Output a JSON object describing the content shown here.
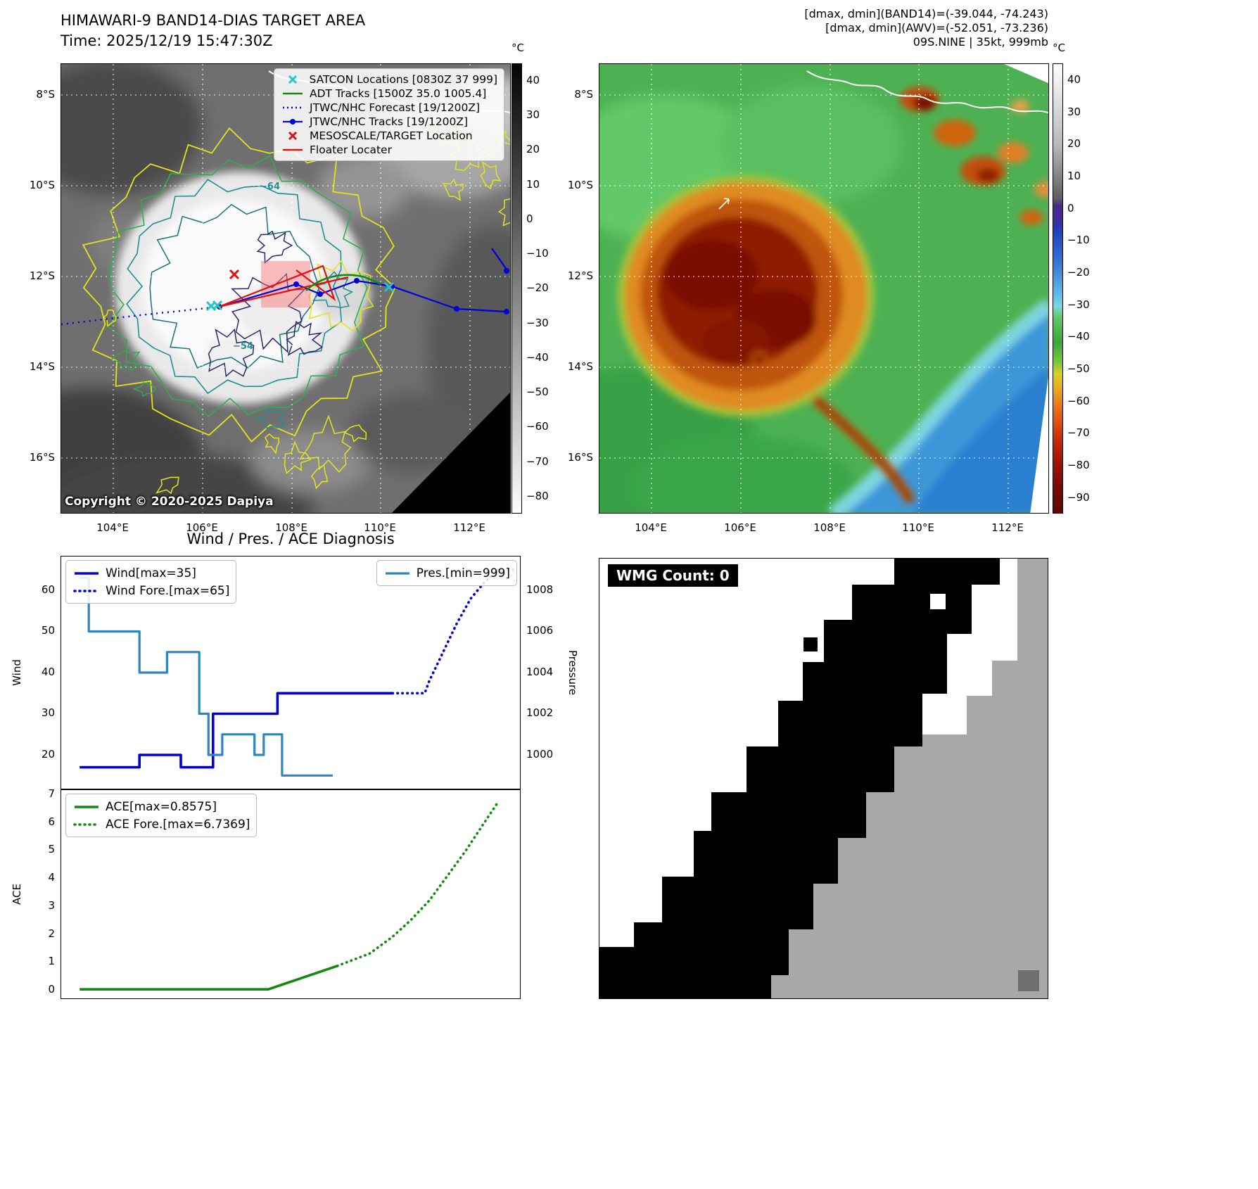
{
  "colors": {
    "satcon": "#26c6c6",
    "adt": "#128a12",
    "jtwc": "#0000dd",
    "target": "#e01010",
    "pres": "#2e86c1",
    "wind": "#0000dd",
    "ace": "#128a12"
  },
  "panel1": {
    "title": "HIMAWARI-9 BAND14-DIAS TARGET AREA",
    "time_line": "Time: 2025/12/19 15:47:30Z",
    "copyright": "Copyright © 2020-2025 Dapiya",
    "legend": [
      {
        "label": "SATCON Locations [0830Z 37 999]"
      },
      {
        "label": "ADT Tracks [1500Z 35.0 1005.4]"
      },
      {
        "label": "JTWC/NHC Forecast [19/1200Z]"
      },
      {
        "label": "JTWC/NHC Tracks [19/1200Z]"
      },
      {
        "label": "MESOSCALE/TARGET Location"
      },
      {
        "label": "Floater Locater"
      }
    ],
    "contour_labels": {
      "outer": "−64",
      "inner": "−54"
    },
    "colorbar": {
      "unit": "°C",
      "ticks": [
        "40",
        "30",
        "20",
        "10",
        "0",
        "−10",
        "−20",
        "−30",
        "−40",
        "−50",
        "−60",
        "−70",
        "−80"
      ]
    },
    "lat_ticks": [
      "8°S",
      "10°S",
      "12°S",
      "14°S",
      "16°S"
    ],
    "lon_ticks": [
      "104°E",
      "106°E",
      "108°E",
      "110°E",
      "112°E"
    ]
  },
  "panel2": {
    "header_lines": [
      "[dmax, dmin](BAND14)=(-39.044, -74.243)",
      "[dmax, dmin](AWV)=(-52.051, -73.236)",
      "09S.NINE | 35kt, 999mb"
    ],
    "colorbar": {
      "unit": "°C",
      "ticks": [
        "40",
        "30",
        "20",
        "10",
        "0",
        "−10",
        "−20",
        "−30",
        "−40",
        "−50",
        "−60",
        "−70",
        "−80",
        "−90"
      ]
    },
    "lat_ticks": [
      "8°S",
      "10°S",
      "12°S",
      "14°S",
      "16°S"
    ],
    "lon_ticks": [
      "104°E",
      "106°E",
      "108°E",
      "110°E",
      "112°E"
    ]
  },
  "wmg": {
    "count_label": "WMG Count: 0"
  },
  "chart_data": [
    {
      "type": "line",
      "title": "Wind / Pres. / ACE Diagnosis",
      "ylabel_left": "Wind",
      "ylabel_right": "Pressure",
      "yticks_wind": [
        20,
        30,
        40,
        50,
        60
      ],
      "yticks_pressure": [
        1000,
        1002,
        1004,
        1006,
        1008
      ],
      "ylim_wind": [
        15,
        67
      ],
      "ylim_pressure": [
        998.8,
        1009.3
      ],
      "legend": [
        "Wind[max=35]",
        "Wind Fore.[max=65]",
        "Pres.[min=999]"
      ],
      "legend_note": "x axis is analysis/forecast time steps (no tick labels shown)",
      "series": [
        {
          "name": "Wind[max=35]",
          "axis": "wind",
          "style": "solid",
          "color": "#0000dd",
          "width": 3.6,
          "points": [
            [
              4,
              17
            ],
            [
              17,
              17
            ],
            [
              17,
              20
            ],
            [
              26,
              20
            ],
            [
              26,
              17
            ],
            [
              33,
              17
            ],
            [
              33,
              30
            ],
            [
              47,
              30
            ],
            [
              47,
              35
            ],
            [
              72,
              35
            ]
          ]
        },
        {
          "name": "Wind Fore.[max=65]",
          "axis": "wind",
          "style": "dotted",
          "color": "#0000dd",
          "width": 3.6,
          "points": [
            [
              72,
              35
            ],
            [
              79,
              35
            ],
            [
              80,
              38
            ],
            [
              83,
              45
            ],
            [
              86,
              52
            ],
            [
              89,
              58
            ],
            [
              92,
              62
            ],
            [
              95,
              65
            ],
            [
              99,
              65
            ]
          ]
        },
        {
          "name": "Pres.[min=999]",
          "axis": "pressure",
          "style": "solid",
          "color": "#2e86c1",
          "width": 3.2,
          "points": [
            [
              4,
              1008.6
            ],
            [
              6,
              1008.6
            ],
            [
              6,
              1006
            ],
            [
              17,
              1006
            ],
            [
              17,
              1004
            ],
            [
              23,
              1004
            ],
            [
              23,
              1005
            ],
            [
              30,
              1005
            ],
            [
              30,
              1002
            ],
            [
              32,
              1002
            ],
            [
              32,
              1000
            ],
            [
              35,
              1000
            ],
            [
              35,
              1001
            ],
            [
              42,
              1001
            ],
            [
              42,
              1000
            ],
            [
              44,
              1000
            ],
            [
              44,
              1001
            ],
            [
              48,
              1001
            ],
            [
              48,
              999
            ],
            [
              59,
              999
            ]
          ]
        }
      ]
    },
    {
      "type": "line",
      "ylabel_left": "ACE",
      "yticks": [
        0,
        1,
        2,
        3,
        4,
        5,
        6,
        7
      ],
      "ylim": [
        -0.2,
        7.2
      ],
      "legend": [
        "ACE[max=0.8575]",
        "ACE Fore.[max=6.7369]"
      ],
      "series": [
        {
          "name": "ACE[max=0.8575]",
          "axis": "ace",
          "style": "solid",
          "color": "#128a12",
          "width": 3.6,
          "points": [
            [
              4,
              0.02
            ],
            [
              45,
              0.02
            ],
            [
              60,
              0.8575
            ]
          ]
        },
        {
          "name": "ACE Fore.[max=6.7369]",
          "axis": "ace",
          "style": "dotted",
          "color": "#128a12",
          "width": 3.6,
          "points": [
            [
              60,
              0.8575
            ],
            [
              67,
              1.3
            ],
            [
              72,
              1.9
            ],
            [
              76,
              2.5
            ],
            [
              80,
              3.2
            ],
            [
              84,
              4.1
            ],
            [
              88,
              5.0
            ],
            [
              92,
              6.0
            ],
            [
              95,
              6.7369
            ]
          ]
        }
      ]
    }
  ]
}
